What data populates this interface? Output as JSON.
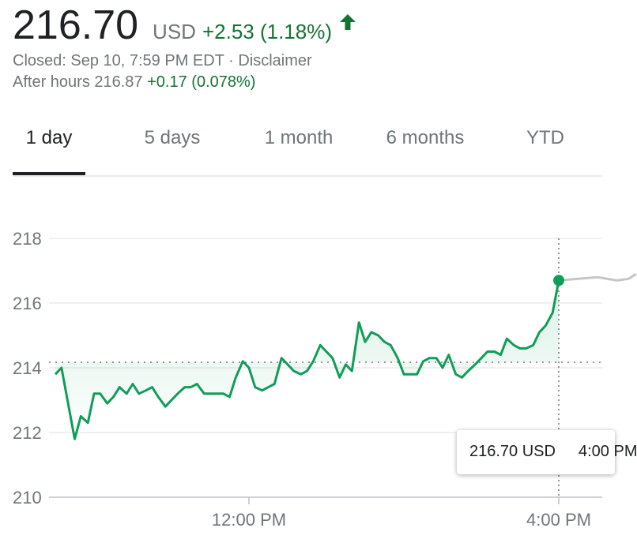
{
  "quote": {
    "price": "216.70",
    "currency": "USD",
    "change": "+2.53 (1.18%)",
    "closed_text": "Closed: Sep 10, 7:59 PM EDT · Disclaimer",
    "after_hours_label": "After hours 216.87",
    "after_hours_change": "+0.17 (0.078%)"
  },
  "tabs": [
    "1 day",
    "5 days",
    "1 month",
    "6 months",
    "YTD"
  ],
  "active_tab": "1 day",
  "tooltip": {
    "value": "216.70 USD",
    "time": "4:00 PM"
  },
  "colors": {
    "positive": "#137333",
    "line": "#0f9d58",
    "after_hours_line": "#c6c6c6"
  },
  "chart_data": {
    "type": "line",
    "x_unit": "time (ET)",
    "ylim": [
      210,
      218
    ],
    "yticks": [
      210,
      212,
      214,
      216,
      218
    ],
    "xticks": [
      {
        "t": 12,
        "label": "12:00 PM"
      },
      {
        "t": 16,
        "label": "4:00 PM"
      }
    ],
    "previous_close": 214.17,
    "grid": true,
    "series": [
      {
        "x": [
          9.5,
          9.58,
          9.75,
          9.83,
          9.92,
          10.0,
          10.08,
          10.17,
          10.25,
          10.33,
          10.42,
          10.5,
          10.58,
          10.67,
          10.75,
          10.83,
          10.92,
          11.0,
          11.08,
          11.17,
          11.25,
          11.33,
          11.42,
          11.5,
          11.58,
          11.67,
          11.75,
          11.83,
          11.92,
          12.0,
          12.08,
          12.17,
          12.25,
          12.33,
          12.42,
          12.5,
          12.58,
          12.67,
          12.75,
          12.83,
          12.92,
          13.0,
          13.08,
          13.17,
          13.25,
          13.33,
          13.42,
          13.5,
          13.58,
          13.67,
          13.75,
          13.83,
          13.92,
          14.0,
          14.08,
          14.17,
          14.25,
          14.33,
          14.42,
          14.5,
          14.58,
          14.67,
          14.75,
          14.83,
          14.92,
          15.0,
          15.08,
          15.17,
          15.25,
          15.33,
          15.42,
          15.5,
          15.58,
          15.67,
          15.75,
          15.83,
          15.92,
          16.0
        ],
        "values": [
          213.8,
          214.0,
          211.8,
          212.5,
          212.3,
          213.2,
          213.2,
          212.9,
          213.1,
          213.4,
          213.2,
          213.5,
          213.2,
          213.3,
          213.4,
          213.1,
          212.8,
          213.0,
          213.2,
          213.4,
          213.4,
          213.5,
          213.2,
          213.2,
          213.2,
          213.2,
          213.1,
          213.7,
          214.2,
          214.0,
          213.4,
          213.3,
          213.4,
          213.5,
          214.3,
          214.1,
          213.9,
          213.8,
          213.9,
          214.2,
          214.7,
          214.5,
          214.3,
          213.7,
          214.1,
          213.9,
          215.4,
          214.8,
          215.1,
          215.0,
          214.8,
          214.7,
          214.3,
          213.8,
          213.8,
          213.8,
          214.2,
          214.3,
          214.3,
          214.0,
          214.4,
          213.8,
          213.7,
          213.9,
          214.1,
          214.3,
          214.5,
          214.5,
          214.4,
          214.9,
          214.7,
          214.6,
          214.6,
          214.7,
          215.1,
          215.3,
          215.7,
          216.7
        ]
      },
      {
        "x": [
          16.0,
          16.25,
          16.5,
          16.75,
          16.9,
          17.0
        ],
        "values": [
          216.7,
          216.75,
          216.8,
          216.7,
          216.75,
          216.9
        ]
      }
    ]
  }
}
